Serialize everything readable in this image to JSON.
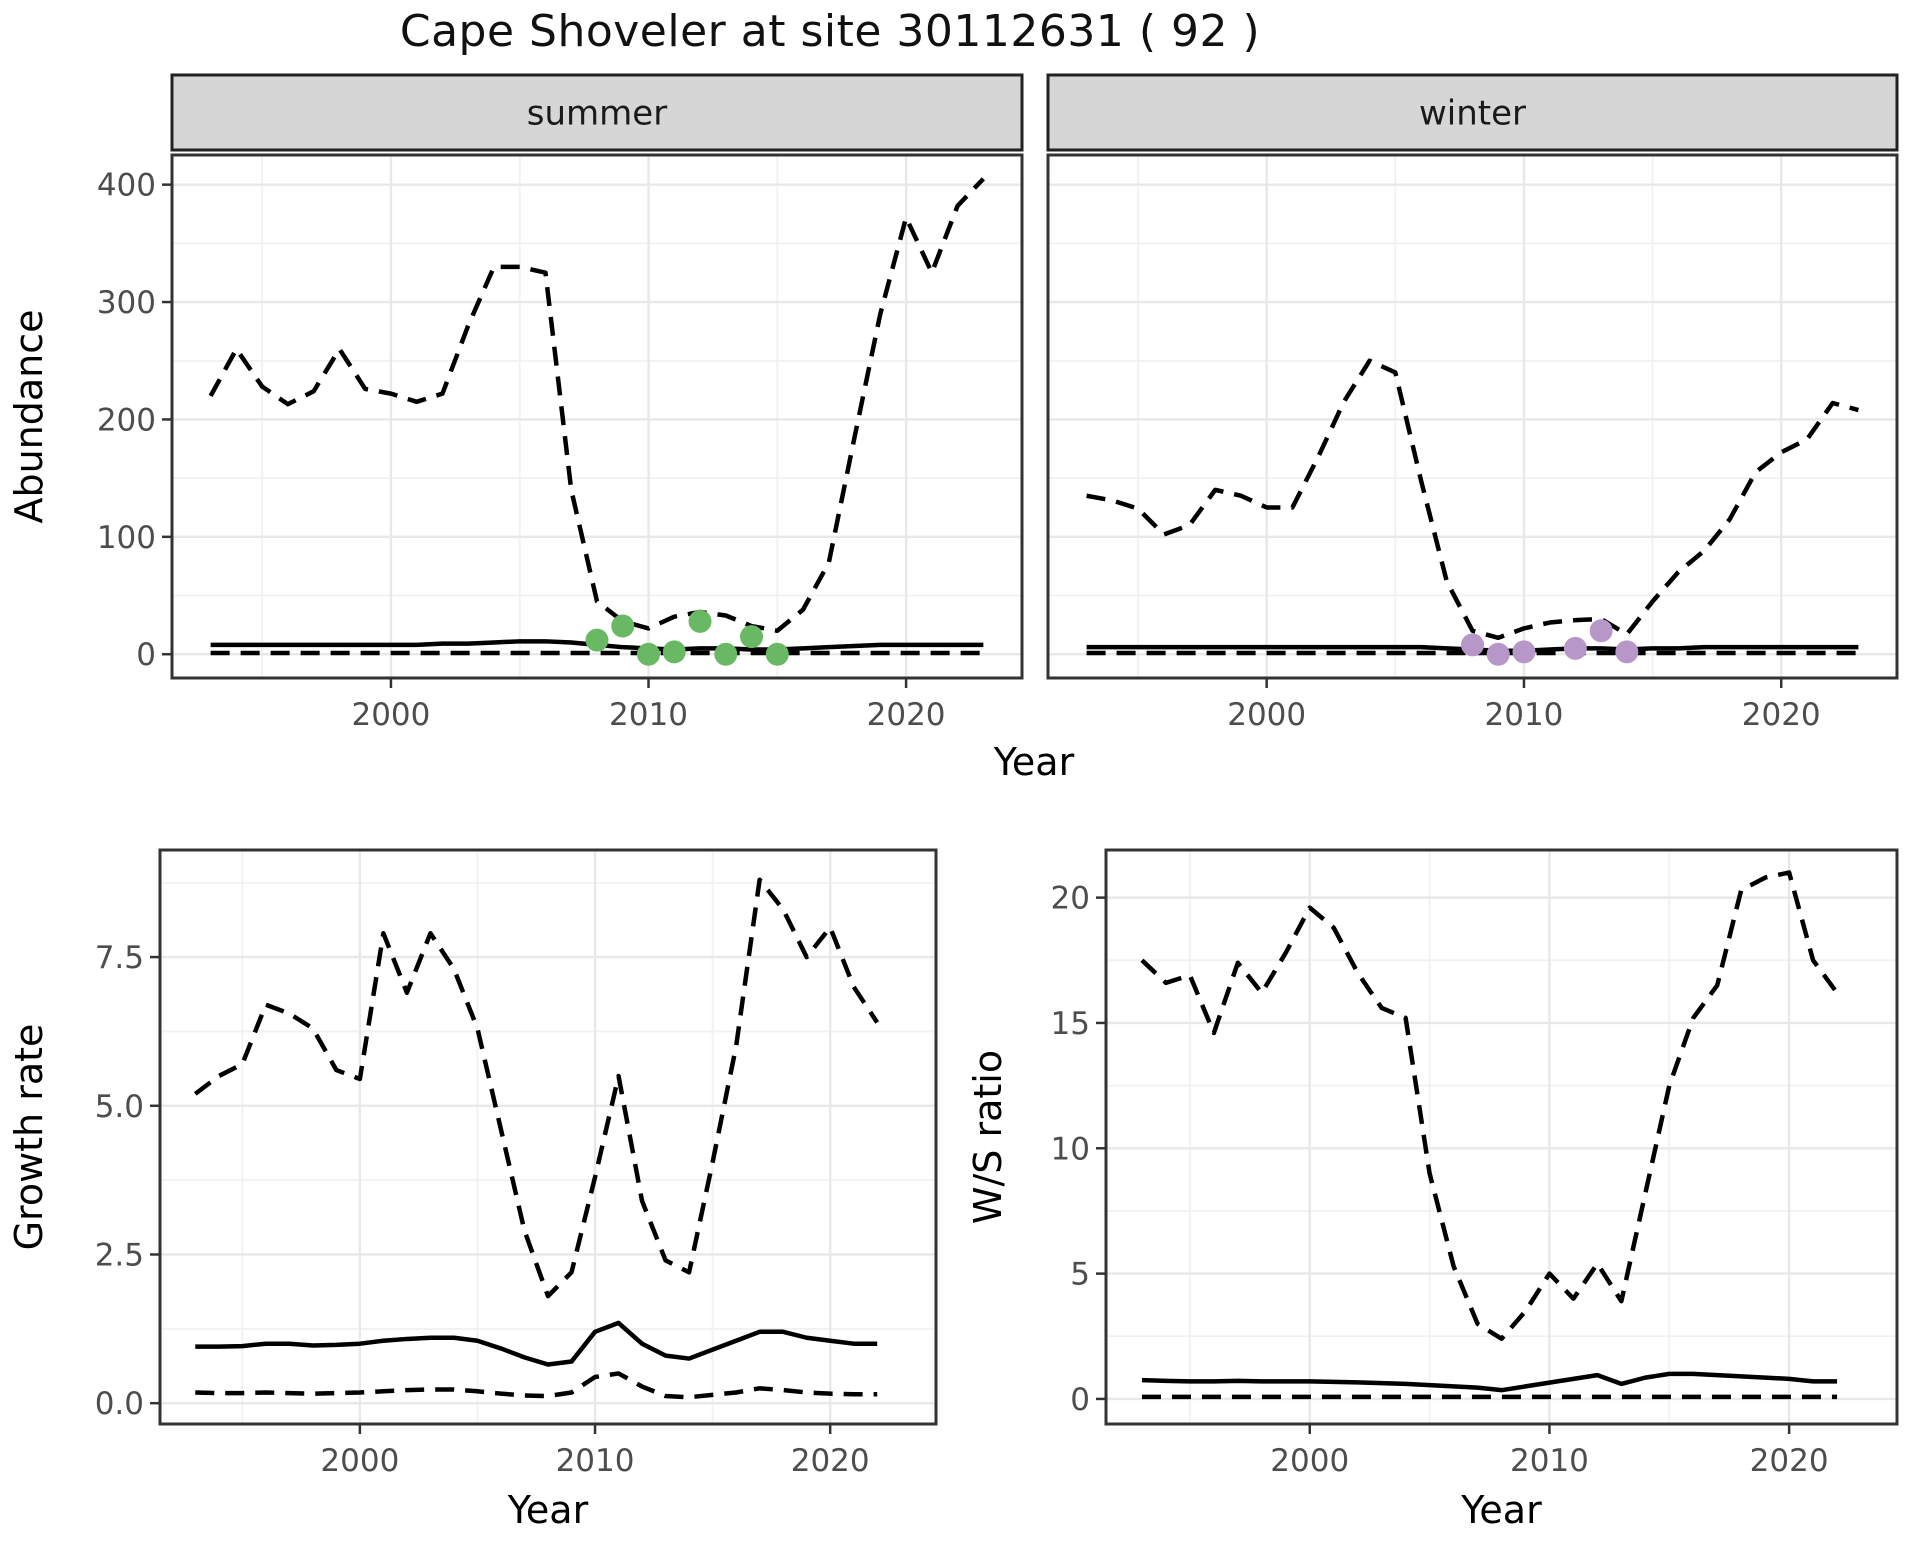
{
  "title": "Cape Shoveler at site 30112631 ( 92 )",
  "axis_labels": {
    "abundance": "Abundance",
    "year_top": "Year",
    "growth_rate": "Growth rate",
    "year_growth": "Year",
    "ws_ratio": "W/S ratio",
    "year_ws": "Year"
  },
  "colors": {
    "summer_points": "#69B964",
    "winter_points": "#B797C7",
    "line": "#000000",
    "grid_major": "#E8E8E8",
    "grid_minor": "#F1F1F1",
    "strip_fill": "#D6D6D6",
    "strip_border": "#222222",
    "panel_border": "#333333",
    "tick_text": "#4D4D4D",
    "axis_text": "#000000"
  },
  "chart_data": [
    {
      "key": "abundance-summer",
      "type": "line",
      "strip_label": "summer",
      "ylabel": "Abundance",
      "x_range": [
        1991.5,
        2024.5
      ],
      "y_range": [
        -20.25,
        425.25
      ],
      "x_ticks": [
        {
          "v": 2000,
          "label": "2000"
        },
        {
          "v": 2010,
          "label": "2010"
        },
        {
          "v": 2020,
          "label": "2020"
        }
      ],
      "x_minor": [
        1995,
        2005,
        2015
      ],
      "y_ticks": [
        {
          "v": 0,
          "label": "0"
        },
        {
          "v": 100,
          "label": "100"
        },
        {
          "v": 200,
          "label": "200"
        },
        {
          "v": 300,
          "label": "300"
        },
        {
          "v": 400,
          "label": "400"
        }
      ],
      "y_minor": [
        50,
        150,
        250,
        350
      ],
      "years": [
        1993,
        1994,
        1995,
        1996,
        1997,
        1998,
        1999,
        2000,
        2001,
        2002,
        2003,
        2004,
        2005,
        2006,
        2007,
        2008,
        2009,
        2010,
        2011,
        2012,
        2013,
        2014,
        2015,
        2016,
        2017,
        2018,
        2019,
        2020,
        2021,
        2022,
        2023
      ],
      "series": [
        {
          "name": "upper-ci",
          "style": "dashed",
          "values": [
            220,
            260,
            228,
            213,
            224,
            260,
            226,
            222,
            215,
            222,
            280,
            330,
            330,
            325,
            140,
            45,
            28,
            22,
            32,
            36,
            33,
            24,
            20,
            38,
            78,
            185,
            290,
            372,
            325,
            382,
            405
          ]
        },
        {
          "name": "median",
          "style": "solid",
          "values": [
            8,
            8,
            8,
            8,
            8,
            8,
            8,
            8,
            8,
            9,
            9,
            10,
            11,
            11,
            10,
            8,
            6,
            5,
            4,
            5,
            5,
            4,
            4,
            5,
            6,
            7,
            8,
            8,
            8,
            8,
            8
          ]
        },
        {
          "name": "lower-ci",
          "style": "dashed",
          "values": [
            1,
            1,
            1,
            1,
            1,
            1,
            1,
            1,
            1,
            1,
            1,
            1,
            1,
            1,
            1,
            1,
            1,
            1,
            1,
            1,
            1,
            1,
            1,
            1,
            1,
            1,
            1,
            1,
            1,
            1,
            1
          ]
        }
      ],
      "points": {
        "name": "summer-observations",
        "color_key": "summer_points",
        "x": [
          2008,
          2009,
          2010,
          2011,
          2012,
          2013,
          2014,
          2015
        ],
        "y": [
          12,
          24,
          0,
          2,
          28,
          0,
          15,
          0
        ]
      }
    },
    {
      "key": "abundance-winter",
      "type": "line",
      "strip_label": "winter",
      "x_range": [
        1991.5,
        2024.5
      ],
      "y_range": [
        -20.25,
        425.25
      ],
      "x_ticks": [
        {
          "v": 2000,
          "label": "2000"
        },
        {
          "v": 2010,
          "label": "2010"
        },
        {
          "v": 2020,
          "label": "2020"
        }
      ],
      "x_minor": [
        1995,
        2005,
        2015
      ],
      "y_ticks": [
        {
          "v": 0,
          "label": ""
        },
        {
          "v": 100,
          "label": ""
        },
        {
          "v": 200,
          "label": ""
        },
        {
          "v": 300,
          "label": ""
        },
        {
          "v": 400,
          "label": ""
        }
      ],
      "y_minor": [
        50,
        150,
        250,
        350
      ],
      "years": [
        1993,
        1994,
        1995,
        1996,
        1997,
        1998,
        1999,
        2000,
        2001,
        2002,
        2003,
        2004,
        2005,
        2006,
        2007,
        2008,
        2009,
        2010,
        2011,
        2012,
        2013,
        2014,
        2015,
        2016,
        2017,
        2018,
        2019,
        2020,
        2021,
        2022,
        2023
      ],
      "series": [
        {
          "name": "upper-ci",
          "style": "dashed",
          "values": [
            135,
            131,
            124,
            102,
            110,
            140,
            135,
            125,
            125,
            168,
            215,
            250,
            240,
            148,
            62,
            20,
            14,
            22,
            27,
            29,
            30,
            17,
            45,
            70,
            88,
            115,
            155,
            172,
            183,
            214,
            208
          ]
        },
        {
          "name": "median",
          "style": "solid",
          "values": [
            6,
            6,
            6,
            6,
            6,
            6,
            6,
            6,
            6,
            6,
            6,
            6,
            6,
            6,
            5,
            4,
            3,
            3,
            4,
            5,
            5,
            4,
            5,
            5,
            6,
            6,
            6,
            6,
            6,
            6,
            6
          ]
        },
        {
          "name": "lower-ci",
          "style": "dashed",
          "values": [
            1,
            1,
            1,
            1,
            1,
            1,
            1,
            1,
            1,
            1,
            1,
            1,
            1,
            1,
            1,
            1,
            1,
            1,
            1,
            1,
            1,
            1,
            1,
            1,
            1,
            1,
            1,
            1,
            1,
            1,
            1
          ]
        }
      ],
      "points": {
        "name": "winter-observations",
        "color_key": "winter_points",
        "x": [
          2008,
          2009,
          2010,
          2012,
          2013,
          2014
        ],
        "y": [
          8,
          0,
          2,
          5,
          20,
          2
        ]
      }
    },
    {
      "key": "growth-rate",
      "type": "line",
      "ylabel": "Growth rate",
      "xlabel": "Year",
      "x_range": [
        1991.5,
        2024.5
      ],
      "y_range": [
        -0.35,
        9.3
      ],
      "x_ticks": [
        {
          "v": 2000,
          "label": "2000"
        },
        {
          "v": 2010,
          "label": "2010"
        },
        {
          "v": 2020,
          "label": "2020"
        }
      ],
      "x_minor": [
        1995,
        2005,
        2015
      ],
      "y_ticks": [
        {
          "v": 0,
          "label": "0.0"
        },
        {
          "v": 2.5,
          "label": "2.5"
        },
        {
          "v": 5,
          "label": "5.0"
        },
        {
          "v": 7.5,
          "label": "7.5"
        }
      ],
      "y_minor": [
        1.25,
        3.75,
        6.25,
        8.75
      ],
      "years": [
        1993,
        1994,
        1995,
        1996,
        1997,
        1998,
        1999,
        2000,
        2001,
        2002,
        2003,
        2004,
        2005,
        2006,
        2007,
        2008,
        2009,
        2010,
        2011,
        2012,
        2013,
        2014,
        2015,
        2016,
        2017,
        2018,
        2019,
        2020,
        2021,
        2022
      ],
      "series": [
        {
          "name": "upper-ci",
          "style": "dashed",
          "values": [
            5.2,
            5.5,
            5.7,
            6.7,
            6.55,
            6.3,
            5.6,
            5.45,
            7.9,
            6.9,
            7.9,
            7.3,
            6.3,
            4.6,
            2.9,
            1.8,
            2.2,
            3.8,
            5.5,
            3.4,
            2.4,
            2.2,
            4.05,
            6.0,
            8.8,
            8.3,
            7.5,
            8.0,
            7.0,
            6.4
          ]
        },
        {
          "name": "median",
          "style": "solid",
          "values": [
            0.95,
            0.95,
            0.96,
            1.0,
            1.0,
            0.97,
            0.98,
            1.0,
            1.05,
            1.08,
            1.1,
            1.1,
            1.05,
            0.92,
            0.77,
            0.65,
            0.7,
            1.2,
            1.35,
            1.0,
            0.8,
            0.75,
            0.9,
            1.05,
            1.2,
            1.2,
            1.1,
            1.05,
            1.0,
            1.0
          ]
        },
        {
          "name": "lower-ci",
          "style": "dashed",
          "values": [
            0.18,
            0.17,
            0.17,
            0.18,
            0.17,
            0.16,
            0.17,
            0.18,
            0.2,
            0.22,
            0.23,
            0.23,
            0.2,
            0.16,
            0.13,
            0.12,
            0.18,
            0.44,
            0.5,
            0.28,
            0.12,
            0.1,
            0.14,
            0.18,
            0.25,
            0.22,
            0.18,
            0.16,
            0.15,
            0.15
          ]
        }
      ]
    },
    {
      "key": "ws-ratio",
      "type": "line",
      "ylabel": "W/S ratio",
      "xlabel": "Year",
      "x_range": [
        1991.5,
        2024.5
      ],
      "y_range": [
        -1.0,
        21.9
      ],
      "x_ticks": [
        {
          "v": 2000,
          "label": "2000"
        },
        {
          "v": 2010,
          "label": "2010"
        },
        {
          "v": 2020,
          "label": "2020"
        }
      ],
      "x_minor": [
        1995,
        2005,
        2015
      ],
      "y_ticks": [
        {
          "v": 0,
          "label": "0"
        },
        {
          "v": 5,
          "label": "5"
        },
        {
          "v": 10,
          "label": "10"
        },
        {
          "v": 15,
          "label": "15"
        },
        {
          "v": 20,
          "label": "20"
        }
      ],
      "y_minor": [
        2.5,
        7.5,
        12.5,
        17.5
      ],
      "years": [
        1993,
        1994,
        1995,
        1996,
        1997,
        1998,
        1999,
        2000,
        2001,
        2002,
        2003,
        2004,
        2005,
        2006,
        2007,
        2008,
        2009,
        2010,
        2011,
        2012,
        2013,
        2014,
        2015,
        2016,
        2017,
        2018,
        2019,
        2020,
        2021,
        2022
      ],
      "series": [
        {
          "name": "upper-ci",
          "style": "dashed",
          "values": [
            17.5,
            16.6,
            16.9,
            14.6,
            17.4,
            16.2,
            17.8,
            19.6,
            18.8,
            17.0,
            15.6,
            15.2,
            9.0,
            5.3,
            3.0,
            2.4,
            3.5,
            5.0,
            4.0,
            5.4,
            3.9,
            8.2,
            12.5,
            15.2,
            16.5,
            20.3,
            20.8,
            21.0,
            17.5,
            16.2
          ]
        },
        {
          "name": "median",
          "style": "solid",
          "values": [
            0.75,
            0.72,
            0.7,
            0.7,
            0.72,
            0.7,
            0.7,
            0.7,
            0.68,
            0.66,
            0.63,
            0.6,
            0.55,
            0.5,
            0.45,
            0.35,
            0.5,
            0.65,
            0.8,
            0.95,
            0.6,
            0.85,
            1.0,
            1.0,
            0.95,
            0.9,
            0.85,
            0.8,
            0.7,
            0.7
          ]
        },
        {
          "name": "lower-ci",
          "style": "dashed",
          "values": [
            0.08,
            0.08,
            0.08,
            0.08,
            0.08,
            0.08,
            0.08,
            0.08,
            0.08,
            0.08,
            0.08,
            0.08,
            0.08,
            0.08,
            0.08,
            0.08,
            0.08,
            0.08,
            0.08,
            0.08,
            0.08,
            0.08,
            0.08,
            0.08,
            0.08,
            0.08,
            0.08,
            0.08,
            0.08,
            0.08
          ]
        }
      ]
    }
  ]
}
